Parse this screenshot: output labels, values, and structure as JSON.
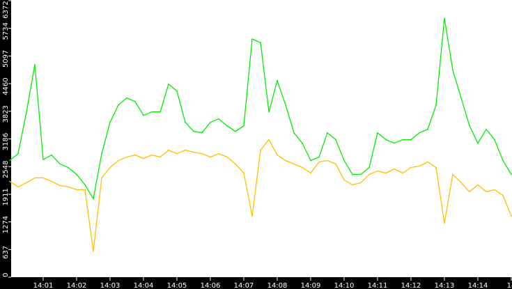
{
  "chart_data": {
    "type": "line",
    "title": "",
    "xlabel": "",
    "ylabel": "",
    "ylim": [
      0,
      6372
    ],
    "yticks": [
      "0",
      "637",
      "1274",
      "1911",
      "2548",
      "3186",
      "3823",
      "4460",
      "5097",
      "5734",
      "6372"
    ],
    "xticks": [
      "14:01",
      "14:02",
      "14:03",
      "14:04",
      "14:05",
      "14:06",
      "14:07",
      "14:08",
      "14:09",
      "14:10",
      "14:11",
      "14:12",
      "14:13",
      "14:14",
      "14"
    ],
    "xlim": [
      "14:00:00",
      "14:15:00"
    ],
    "grid": false,
    "background": "#ffffff",
    "axis_color": "#000000",
    "x": [
      "14:00:00",
      "14:00:15",
      "14:00:30",
      "14:00:45",
      "14:01:00",
      "14:01:15",
      "14:01:30",
      "14:01:45",
      "14:02:00",
      "14:02:15",
      "14:02:30",
      "14:02:45",
      "14:03:00",
      "14:03:15",
      "14:03:30",
      "14:03:45",
      "14:04:00",
      "14:04:15",
      "14:04:30",
      "14:04:45",
      "14:05:00",
      "14:05:15",
      "14:05:30",
      "14:05:45",
      "14:06:00",
      "14:06:15",
      "14:06:30",
      "14:06:45",
      "14:07:00",
      "14:07:15",
      "14:07:30",
      "14:07:45",
      "14:08:00",
      "14:08:15",
      "14:08:30",
      "14:08:45",
      "14:09:00",
      "14:09:15",
      "14:09:30",
      "14:09:45",
      "14:10:00",
      "14:10:15",
      "14:10:30",
      "14:10:45",
      "14:11:00",
      "14:11:15",
      "14:11:30",
      "14:11:45",
      "14:12:00",
      "14:12:15",
      "14:12:30",
      "14:12:45",
      "14:13:00",
      "14:13:15",
      "14:13:30",
      "14:13:45",
      "14:14:00",
      "14:14:15",
      "14:14:30",
      "14:14:45",
      "14:15:00"
    ],
    "series": [
      {
        "color": "#00ee00",
        "values": [
          2688,
          2848,
          3808,
          4900,
          2710,
          2816,
          2608,
          2528,
          2368,
          2128,
          1808,
          2848,
          3568,
          3968,
          4128,
          4048,
          3728,
          3808,
          3808,
          4448,
          4288,
          3568,
          3360,
          3328,
          3568,
          3648,
          3488,
          3360,
          3488,
          5488,
          5408,
          3808,
          4528,
          3968,
          3328,
          3088,
          2688,
          2768,
          3328,
          3168,
          2688,
          2368,
          2368,
          2528,
          3328,
          3168,
          3088,
          3168,
          3168,
          3328,
          3408,
          3968,
          5968,
          4768,
          4128,
          3488,
          3088,
          3408,
          3168,
          2688,
          2368
        ]
      },
      {
        "color": "#ffc000",
        "values": [
          2208,
          2080,
          2176,
          2288,
          2288,
          2208,
          2112,
          2080,
          2016,
          2016,
          600,
          2288,
          2528,
          2688,
          2768,
          2816,
          2736,
          2816,
          2768,
          2928,
          2848,
          2928,
          2880,
          2848,
          2768,
          2848,
          2768,
          2608,
          2400,
          1408,
          2928,
          3168,
          2816,
          2688,
          2608,
          2528,
          2400,
          2656,
          2688,
          2608,
          2240,
          2128,
          2176,
          2368,
          2448,
          2400,
          2496,
          2400,
          2528,
          2560,
          2656,
          2528,
          1248,
          2368,
          2176,
          1968,
          2128,
          1968,
          2016,
          1888,
          1408
        ]
      }
    ]
  }
}
